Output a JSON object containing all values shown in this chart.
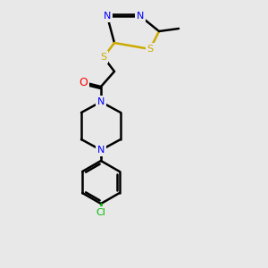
{
  "bg_color": "#e8e8e8",
  "bond_color": "#000000",
  "bond_width": 1.5,
  "atom_colors": {
    "N": "#0000ff",
    "O": "#ff0000",
    "S": "#ccaa00",
    "Cl": "#00bb00",
    "C": "#000000"
  },
  "font_size": 8,
  "fig_size": [
    3.0,
    3.0
  ],
  "dpi": 100
}
